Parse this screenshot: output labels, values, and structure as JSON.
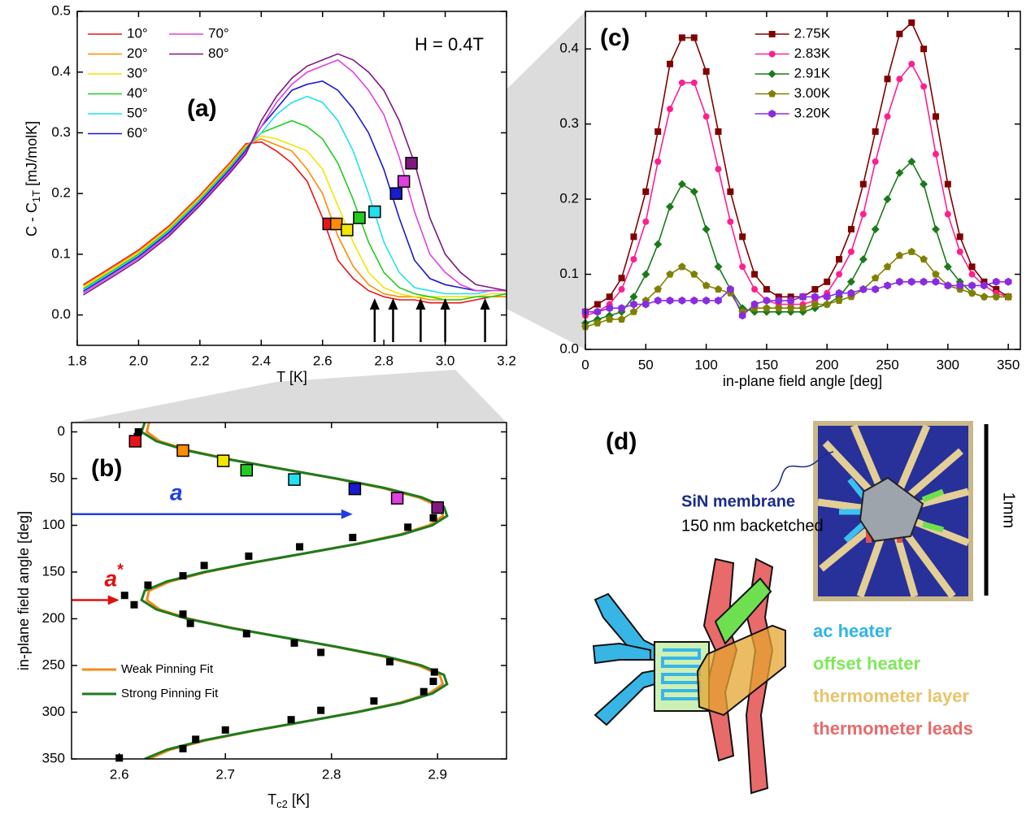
{
  "chart_data": [
    {
      "type": "line",
      "panel_label": "(a)",
      "annotation": "H = 0.4T",
      "xlabel": "T [K]",
      "ylabel": {
        "main": "C - C",
        "subscript": "1T",
        "unit": " [mJ/molK]"
      },
      "xlim": [
        1.8,
        3.2
      ],
      "ylim": [
        -0.05,
        0.5
      ],
      "xticks": [
        1.8,
        {
          "value": 2,
          "label": "2.0"
        },
        2.2,
        2.4,
        2.6,
        2.8,
        {
          "value": 3,
          "label": "3.0"
        },
        3.2
      ],
      "yticks": [
        {
          "value": 0,
          "label": "0.0"
        },
        0.1,
        0.2,
        0.3,
        0.4,
        0.5
      ],
      "legend": "upper left",
      "legend_rows": 6,
      "x": [
        1.82,
        1.9,
        2.0,
        2.1,
        2.2,
        2.3,
        2.35,
        2.4,
        2.45,
        2.5,
        2.55,
        2.6,
        2.65,
        2.7,
        2.75,
        2.8,
        2.85,
        2.9,
        2.95,
        3.0,
        3.05,
        3.1,
        3.15,
        3.2
      ],
      "series": [
        {
          "name": "10°",
          "color": "#e8141c",
          "values": [
            0.05,
            0.075,
            0.107,
            0.147,
            0.197,
            0.252,
            0.282,
            0.285,
            0.27,
            0.25,
            0.22,
            0.16,
            0.09,
            0.06,
            0.04,
            0.03,
            0.025,
            0.025,
            0.02,
            0.02,
            0.02,
            0.025,
            0.03,
            0.03
          ]
        },
        {
          "name": "20°",
          "color": "#ff8c00",
          "values": [
            0.048,
            0.073,
            0.105,
            0.145,
            0.195,
            0.25,
            0.28,
            0.29,
            0.28,
            0.27,
            0.24,
            0.2,
            0.13,
            0.08,
            0.05,
            0.035,
            0.03,
            0.03,
            0.025,
            0.025,
            0.025,
            0.03,
            0.03,
            0.03
          ]
        },
        {
          "name": "30°",
          "color": "#f2e600",
          "values": [
            0.045,
            0.07,
            0.102,
            0.142,
            0.192,
            0.247,
            0.277,
            0.295,
            0.29,
            0.28,
            0.27,
            0.24,
            0.18,
            0.12,
            0.07,
            0.045,
            0.035,
            0.03,
            0.03,
            0.03,
            0.03,
            0.03,
            0.035,
            0.035
          ]
        },
        {
          "name": "40°",
          "color": "#22cc22",
          "values": [
            0.043,
            0.068,
            0.1,
            0.14,
            0.19,
            0.245,
            0.275,
            0.3,
            0.31,
            0.32,
            0.31,
            0.29,
            0.25,
            0.19,
            0.12,
            0.07,
            0.045,
            0.035,
            0.03,
            0.025,
            0.025,
            0.03,
            0.03,
            0.035
          ]
        },
        {
          "name": "50°",
          "color": "#22e0ee",
          "values": [
            0.041,
            0.066,
            0.098,
            0.138,
            0.188,
            0.243,
            0.273,
            0.3,
            0.33,
            0.35,
            0.36,
            0.35,
            0.32,
            0.27,
            0.2,
            0.12,
            0.07,
            0.045,
            0.04,
            0.035,
            0.035,
            0.035,
            0.04,
            0.04
          ]
        },
        {
          "name": "60°",
          "color": "#1a1ad0",
          "values": [
            0.039,
            0.064,
            0.096,
            0.136,
            0.186,
            0.241,
            0.271,
            0.31,
            0.34,
            0.37,
            0.38,
            0.385,
            0.37,
            0.34,
            0.3,
            0.24,
            0.16,
            0.09,
            0.06,
            0.05,
            0.045,
            0.04,
            0.04,
            0.04
          ]
        },
        {
          "name": "70°",
          "color": "#e040e0",
          "values": [
            0.036,
            0.061,
            0.093,
            0.133,
            0.183,
            0.238,
            0.268,
            0.31,
            0.35,
            0.38,
            0.4,
            0.41,
            0.42,
            0.4,
            0.37,
            0.33,
            0.26,
            0.17,
            0.1,
            0.07,
            0.05,
            0.04,
            0.04,
            0.04
          ]
        },
        {
          "name": "80°",
          "color": "#801880",
          "values": [
            0.033,
            0.058,
            0.09,
            0.13,
            0.18,
            0.235,
            0.265,
            0.32,
            0.36,
            0.39,
            0.41,
            0.42,
            0.43,
            0.42,
            0.4,
            0.37,
            0.32,
            0.25,
            0.16,
            0.1,
            0.07,
            0.05,
            0.045,
            0.04
          ]
        }
      ],
      "markers": {
        "x": [
          2.62,
          2.645,
          2.68,
          2.72,
          2.77,
          2.84,
          2.865,
          2.89
        ],
        "y": [
          0.15,
          0.15,
          0.14,
          0.16,
          0.17,
          0.2,
          0.22,
          0.25
        ]
      },
      "arrows": [
        2.77,
        2.83,
        2.92,
        3.0,
        3.13
      ]
    },
    {
      "type": "scatter",
      "panel_label": "(b)",
      "xlabel": {
        "main": "T",
        "subscript": "c2",
        "unit": " [K]"
      },
      "ylabel": "in-plane field angle [deg]",
      "xlim": [
        2.555,
        2.965
      ],
      "ylim": [
        -10,
        350
      ],
      "y_inverted": true,
      "xticks": [
        2.6,
        2.7,
        2.8,
        2.9
      ],
      "yticks": [
        0,
        50,
        100,
        150,
        200,
        250,
        300,
        350
      ],
      "legend": "lower left",
      "series": [
        {
          "name": "Weak Pinning Fit",
          "color": "#f28b1e",
          "x": [
            2.628,
            2.626,
            2.638,
            2.666,
            2.707,
            2.755,
            2.804,
            2.848,
            2.882,
            2.902,
            2.905,
            2.892,
            2.864,
            2.823,
            2.775,
            2.726,
            2.682,
            2.648,
            2.628,
            2.626,
            2.638,
            2.666,
            2.707,
            2.755,
            2.804,
            2.848,
            2.882,
            2.902,
            2.905,
            2.892,
            2.864,
            2.823,
            2.775,
            2.726,
            2.682,
            2.648,
            2.628
          ],
          "y": [
            -10,
            0,
            10,
            20,
            30,
            40,
            50,
            60,
            70,
            80,
            90,
            100,
            110,
            120,
            130,
            140,
            150,
            160,
            170,
            180,
            190,
            200,
            210,
            220,
            230,
            240,
            250,
            260,
            270,
            280,
            290,
            300,
            310,
            320,
            330,
            340,
            350
          ]
        },
        {
          "name": "Strong Pinning Fit",
          "color": "#1f7a1f",
          "x": [
            2.624,
            2.621,
            2.635,
            2.664,
            2.706,
            2.755,
            2.805,
            2.85,
            2.885,
            2.906,
            2.909,
            2.895,
            2.866,
            2.824,
            2.775,
            2.725,
            2.68,
            2.645,
            2.624,
            2.621,
            2.635,
            2.664,
            2.706,
            2.755,
            2.805,
            2.85,
            2.885,
            2.906,
            2.909,
            2.895,
            2.866,
            2.824,
            2.775,
            2.725,
            2.68,
            2.645,
            2.624
          ],
          "y": [
            -10,
            0,
            10,
            20,
            30,
            40,
            50,
            60,
            70,
            80,
            90,
            100,
            110,
            120,
            130,
            140,
            150,
            160,
            170,
            180,
            190,
            200,
            210,
            220,
            230,
            240,
            250,
            260,
            270,
            280,
            290,
            300,
            310,
            320,
            330,
            340,
            350
          ]
        }
      ],
      "points": {
        "color": "#000000",
        "x": [
          2.618,
          2.617,
          2.896,
          2.872,
          2.82,
          2.77,
          2.722,
          2.68,
          2.66,
          2.627,
          2.605,
          2.614,
          2.66,
          2.667,
          2.72,
          2.765,
          2.79,
          2.855,
          2.897,
          2.896,
          2.887,
          2.84,
          2.79,
          2.762,
          2.7,
          2.672,
          2.66,
          2.6
        ],
        "y": [
          0,
          5,
          92,
          102,
          113,
          123,
          133,
          143,
          154,
          164,
          175,
          185,
          195,
          205,
          216,
          226,
          236,
          246,
          257,
          267,
          278,
          288,
          298,
          308,
          319,
          329,
          339,
          349
        ]
      },
      "colored_points": {
        "colors": [
          "#e8141c",
          "#ff8c00",
          "#f2e600",
          "#22cc22",
          "#22e0ee",
          "#1a1ad0",
          "#e040e0",
          "#801880"
        ],
        "x": [
          2.615,
          2.66,
          2.698,
          2.72,
          2.765,
          2.822,
          2.862,
          2.9
        ],
        "y": [
          10,
          20,
          31,
          41,
          51,
          61,
          71,
          81
        ]
      },
      "annotations": [
        {
          "text": "a",
          "y": 88,
          "x_end": 2.82,
          "color": "#1f3fe0"
        },
        {
          "text": "a",
          "superscript": "*",
          "y": 180,
          "x_end": 2.6,
          "color": "#e01010"
        }
      ]
    },
    {
      "type": "line",
      "panel_label": "(c)",
      "xlabel": "in-plane field angle [deg]",
      "xlim": [
        0,
        360
      ],
      "ylim": [
        0,
        0.45
      ],
      "xticks": [
        0,
        50,
        100,
        150,
        200,
        250,
        300,
        350
      ],
      "yticks": [
        {
          "value": 0,
          "label": "0.0"
        },
        0.1,
        0.2,
        0.3,
        0.4
      ],
      "legend": "upper center",
      "x": [
        0,
        10,
        20,
        30,
        40,
        50,
        60,
        70,
        80,
        90,
        100,
        110,
        120,
        130,
        140,
        150,
        160,
        170,
        180,
        190,
        200,
        210,
        220,
        230,
        240,
        250,
        260,
        270,
        280,
        290,
        300,
        310,
        320,
        330,
        340,
        350
      ],
      "series": [
        {
          "name": "2.75K",
          "color": "#800000",
          "marker": "square",
          "values": [
            0.05,
            0.06,
            0.07,
            0.095,
            0.15,
            0.21,
            0.29,
            0.38,
            0.415,
            0.415,
            0.37,
            0.29,
            0.21,
            0.15,
            0.1,
            0.08,
            0.07,
            0.07,
            0.07,
            0.08,
            0.09,
            0.12,
            0.16,
            0.22,
            0.29,
            0.36,
            0.42,
            0.435,
            0.4,
            0.31,
            0.22,
            0.15,
            0.11,
            0.09,
            0.08,
            0.07
          ]
        },
        {
          "name": "2.83K",
          "color": "#ff1f8f",
          "marker": "circle",
          "values": [
            0.045,
            0.05,
            0.06,
            0.08,
            0.12,
            0.17,
            0.25,
            0.32,
            0.355,
            0.355,
            0.31,
            0.24,
            0.17,
            0.11,
            0.08,
            0.065,
            0.06,
            0.06,
            0.06,
            0.065,
            0.075,
            0.1,
            0.13,
            0.18,
            0.25,
            0.31,
            0.36,
            0.38,
            0.35,
            0.26,
            0.18,
            0.13,
            0.1,
            0.085,
            0.075,
            0.07
          ]
        },
        {
          "name": "2.91K",
          "color": "#1a7a1a",
          "marker": "diamond",
          "values": [
            0.035,
            0.04,
            0.045,
            0.05,
            0.07,
            0.1,
            0.14,
            0.19,
            0.22,
            0.21,
            0.16,
            0.11,
            0.08,
            0.055,
            0.05,
            0.05,
            0.05,
            0.05,
            0.05,
            0.055,
            0.06,
            0.07,
            0.09,
            0.12,
            0.16,
            0.2,
            0.235,
            0.25,
            0.22,
            0.16,
            0.11,
            0.09,
            0.075,
            0.07,
            0.07,
            0.07
          ]
        },
        {
          "name": "3.00K",
          "color": "#808000",
          "marker": "pentagon",
          "values": [
            0.03,
            0.035,
            0.04,
            0.04,
            0.05,
            0.065,
            0.08,
            0.1,
            0.11,
            0.1,
            0.085,
            0.08,
            0.075,
            0.05,
            0.055,
            0.055,
            0.055,
            0.055,
            0.055,
            0.06,
            0.06,
            0.065,
            0.07,
            0.08,
            0.095,
            0.11,
            0.125,
            0.13,
            0.12,
            0.1,
            0.085,
            0.08,
            0.075,
            0.07,
            0.07,
            0.07
          ]
        },
        {
          "name": "3.20K",
          "color": "#8a2be2",
          "marker": "hexagon",
          "values": [
            0.05,
            0.05,
            0.055,
            0.055,
            0.06,
            0.06,
            0.065,
            0.065,
            0.065,
            0.065,
            0.065,
            0.065,
            0.08,
            0.045,
            0.06,
            0.065,
            0.065,
            0.065,
            0.07,
            0.07,
            0.07,
            0.075,
            0.075,
            0.08,
            0.08,
            0.085,
            0.09,
            0.09,
            0.09,
            0.09,
            0.085,
            0.085,
            0.085,
            0.085,
            0.09,
            0.09
          ]
        }
      ]
    }
  ],
  "panel_d": {
    "panel_label": "(d)",
    "membrane_label": "SiN membrane",
    "membrane_note": "150 nm backetched",
    "scale_label": "1mm",
    "legend": [
      "ac heater",
      "offset heater",
      "thermometer layer",
      "thermometer leads"
    ]
  }
}
